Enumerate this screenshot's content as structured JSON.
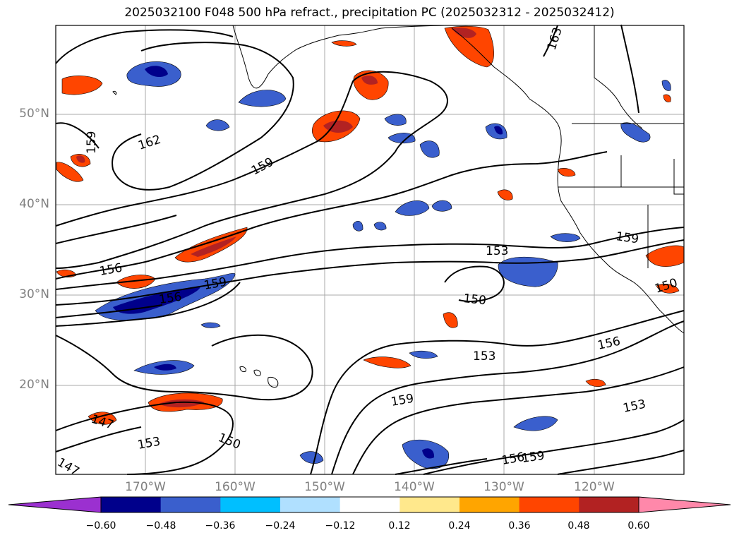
{
  "title": "2025032100 F048 500 hPa refract., precipitation PC (2025032312 - 2025032412)",
  "lat_labels": [
    "50°N",
    "40°N",
    "30°N",
    "20°N"
  ],
  "lon_labels": [
    "170°W",
    "160°W",
    "150°W",
    "140°W",
    "130°W",
    "120°W"
  ],
  "contour_labels": [
    "162",
    "159",
    "159",
    "156",
    "156",
    "159",
    "153",
    "150",
    "153",
    "156",
    "159",
    "147",
    "153",
    "150",
    "147",
    "159",
    "156",
    "153",
    "159",
    "150",
    "163"
  ],
  "colorbar": {
    "ticks": [
      "−0.60",
      "−0.48",
      "−0.36",
      "−0.24",
      "−0.12",
      "0.12",
      "0.24",
      "0.36",
      "0.48",
      "0.60"
    ],
    "colors": [
      "#9b30d0",
      "#00008b",
      "#3a5fcd",
      "#00bfff",
      "#b0e0ff",
      "#ffffff",
      "#ffe88c",
      "#ffa500",
      "#ff4500",
      "#b22222",
      "#ff88aa"
    ]
  }
}
